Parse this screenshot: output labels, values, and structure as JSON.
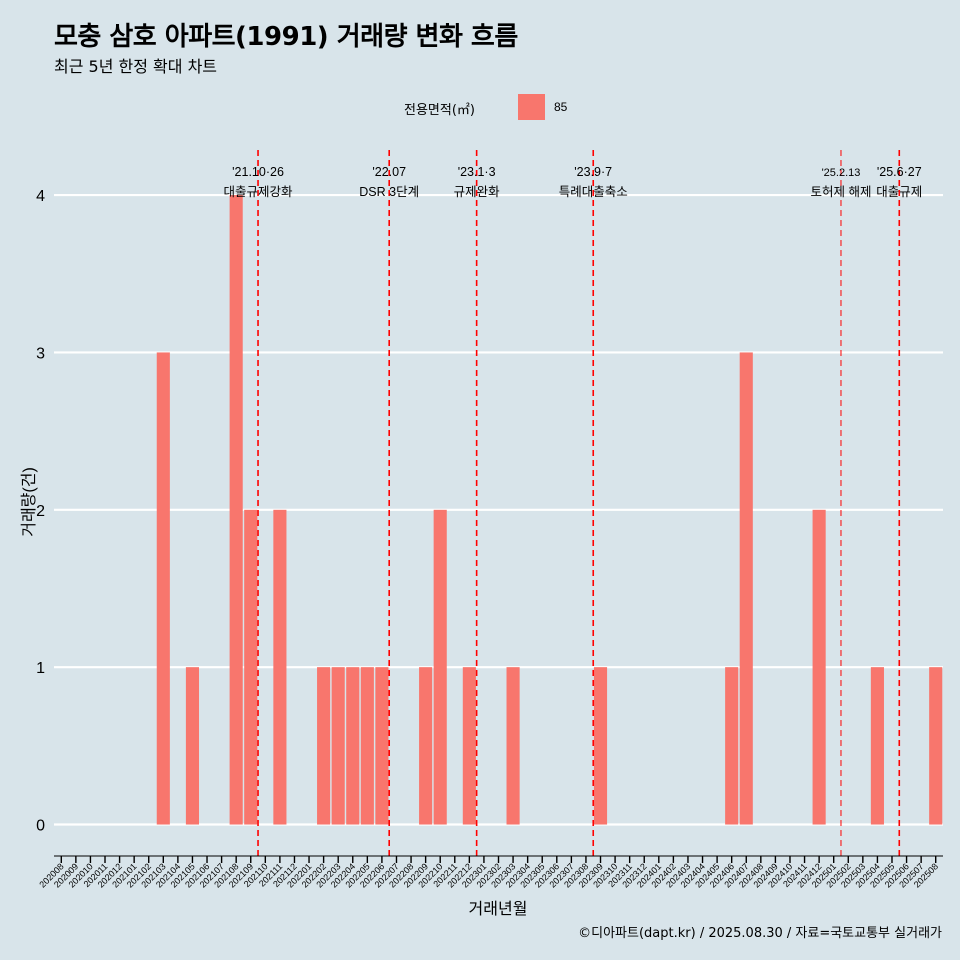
{
  "title": "모충 삼호 아파트(1991) 거래량 변화 흐름",
  "subtitle": "최근 5년 한정 확대 차트",
  "legend": {
    "title": "전용면적(㎡)",
    "label": "85"
  },
  "caption": "©디아파트(dapt.kr) / 2025.08.30 / 자료=국토교통부 실거래가",
  "colors": {
    "bar": "#f8766d",
    "background": "#d8e4ea",
    "grid": "#ffffff",
    "event_line": "#ff0000"
  },
  "chart_data": {
    "type": "bar",
    "xlabel": "거래년월",
    "ylabel": "거래량(건)",
    "ylim": [
      -0.2,
      4.35
    ],
    "yticks": [
      0,
      1,
      2,
      3,
      4
    ],
    "grid": "horizontal",
    "legend_position": "top",
    "categories": [
      "202008",
      "202009",
      "202010",
      "202011",
      "202012",
      "202101",
      "202102",
      "202103",
      "202104",
      "202105",
      "202106",
      "202107",
      "202108",
      "202109",
      "202110",
      "202111",
      "202112",
      "202201",
      "202202",
      "202203",
      "202204",
      "202205",
      "202206",
      "202207",
      "202208",
      "202209",
      "202210",
      "202211",
      "202212",
      "202301",
      "202302",
      "202303",
      "202304",
      "202305",
      "202306",
      "202307",
      "202308",
      "202309",
      "202310",
      "202311",
      "202312",
      "202401",
      "202402",
      "202403",
      "202404",
      "202405",
      "202406",
      "202407",
      "202408",
      "202409",
      "202410",
      "202411",
      "202412",
      "202501",
      "202502",
      "202503",
      "202504",
      "202505",
      "202506",
      "202507",
      "202508"
    ],
    "series": [
      {
        "name": "85",
        "values": [
          0,
          0,
          0,
          0,
          0,
          0,
          0,
          3,
          0,
          1,
          0,
          0,
          4,
          2,
          0,
          2,
          0,
          0,
          1,
          1,
          1,
          1,
          1,
          0,
          0,
          1,
          2,
          0,
          1,
          0,
          0,
          1,
          0,
          0,
          0,
          0,
          0,
          1,
          0,
          0,
          0,
          0,
          0,
          0,
          0,
          0,
          1,
          3,
          0,
          0,
          0,
          0,
          2,
          0,
          0,
          0,
          1,
          0,
          0,
          0,
          1
        ]
      }
    ],
    "annotations": [
      {
        "at": "202110",
        "date": "'21.10·26",
        "text": "대출규제강화"
      },
      {
        "at": "202207",
        "date": "'22.07",
        "text": "DSR 3단계"
      },
      {
        "at": "202301",
        "date": "'23.1·3",
        "text": "규제완화"
      },
      {
        "at": "202309",
        "date": "'23.9·7",
        "text": "특례대출축소"
      },
      {
        "at": "202502",
        "date": "'25.2.13",
        "text": "토허제 해제"
      },
      {
        "at": "202506",
        "date": "'25.6·27",
        "text": "대출규제"
      }
    ]
  }
}
